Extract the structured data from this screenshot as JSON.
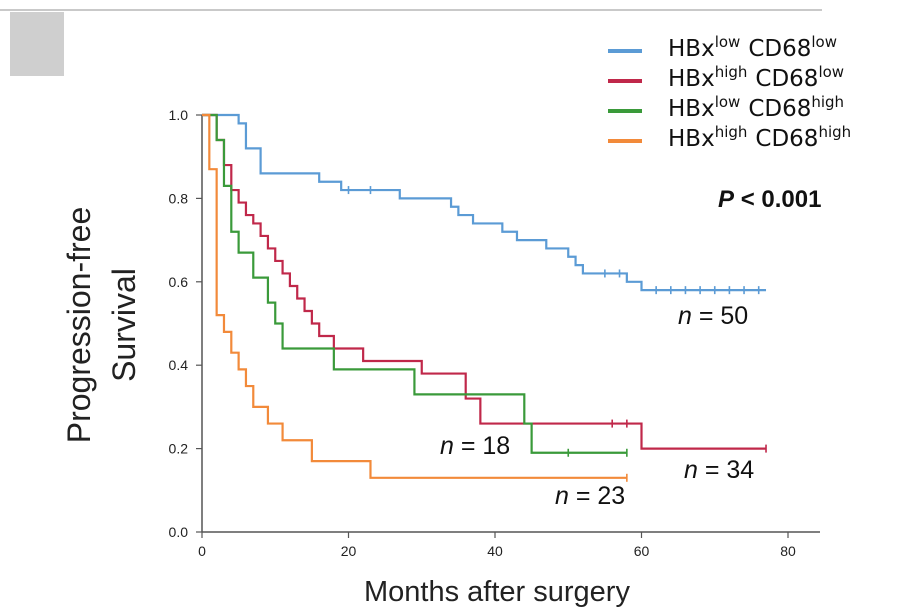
{
  "chart_data": {
    "type": "line",
    "style": "kaplan-meier step",
    "xlabel": "Months after surgery",
    "ylabel_line1": "Progression-free",
    "ylabel_line2": "Survival",
    "xlim": [
      0,
      80
    ],
    "ylim": [
      0,
      1.0
    ],
    "x_ticks": [
      0,
      20,
      40,
      60,
      80
    ],
    "y_ticks": [
      "0.0",
      "0.2",
      "0.4",
      "0.6",
      "0.8",
      "1.0"
    ],
    "y_tick_values": [
      0,
      0.2,
      0.4,
      0.6,
      0.8,
      1.0
    ],
    "legend_position": "top-right",
    "p_value_label": "P",
    "p_value_text": "< 0.001",
    "series": [
      {
        "name": "HBx low CD68 low",
        "hbx_sup": "low",
        "cd68_sup": "low",
        "color": "#5b9bd5",
        "n_prefix": "n",
        "n_text": "= 50",
        "steps": [
          [
            0,
            1.0
          ],
          [
            5,
            0.98
          ],
          [
            6,
            0.92
          ],
          [
            8,
            0.86
          ],
          [
            16,
            0.84
          ],
          [
            19,
            0.82
          ],
          [
            27,
            0.8
          ],
          [
            34,
            0.78
          ],
          [
            35,
            0.76
          ],
          [
            37,
            0.74
          ],
          [
            41,
            0.72
          ],
          [
            43,
            0.7
          ],
          [
            47,
            0.68
          ],
          [
            50,
            0.66
          ],
          [
            51,
            0.64
          ],
          [
            52,
            0.62
          ],
          [
            58,
            0.6
          ],
          [
            60,
            0.58
          ],
          [
            77,
            0.58
          ]
        ],
        "censored": [
          [
            20,
            0.82
          ],
          [
            23,
            0.82
          ],
          [
            62,
            0.58
          ],
          [
            64,
            0.58
          ],
          [
            66,
            0.58
          ],
          [
            68,
            0.58
          ],
          [
            70,
            0.58
          ],
          [
            72,
            0.58
          ],
          [
            74,
            0.58
          ],
          [
            76,
            0.58
          ],
          [
            55,
            0.62
          ],
          [
            57,
            0.62
          ]
        ]
      },
      {
        "name": "HBx high CD68 low",
        "hbx_sup": "high",
        "cd68_sup": "low",
        "color": "#c0284a",
        "n_prefix": "n",
        "n_text": "= 34",
        "steps": [
          [
            0,
            1.0
          ],
          [
            2,
            0.94
          ],
          [
            3,
            0.88
          ],
          [
            4,
            0.82
          ],
          [
            5,
            0.79
          ],
          [
            6,
            0.76
          ],
          [
            7,
            0.74
          ],
          [
            8,
            0.71
          ],
          [
            9,
            0.68
          ],
          [
            10,
            0.65
          ],
          [
            11,
            0.62
          ],
          [
            12,
            0.59
          ],
          [
            13,
            0.56
          ],
          [
            14,
            0.53
          ],
          [
            15,
            0.5
          ],
          [
            16,
            0.47
          ],
          [
            18,
            0.44
          ],
          [
            22,
            0.41
          ],
          [
            30,
            0.38
          ],
          [
            36,
            0.32
          ],
          [
            38,
            0.26
          ],
          [
            58,
            0.26
          ],
          [
            60,
            0.2
          ],
          [
            77,
            0.2
          ]
        ],
        "censored": [
          [
            56,
            0.26
          ],
          [
            58,
            0.26
          ],
          [
            77,
            0.2
          ]
        ]
      },
      {
        "name": "HBx low CD68 high",
        "hbx_sup": "low",
        "cd68_sup": "high",
        "color": "#3a9a3a",
        "n_prefix": "n",
        "n_text": "= 18",
        "steps": [
          [
            0,
            1.0
          ],
          [
            2,
            0.94
          ],
          [
            3,
            0.83
          ],
          [
            4,
            0.72
          ],
          [
            5,
            0.67
          ],
          [
            7,
            0.61
          ],
          [
            9,
            0.55
          ],
          [
            10,
            0.5
          ],
          [
            11,
            0.44
          ],
          [
            18,
            0.39
          ],
          [
            29,
            0.33
          ],
          [
            44,
            0.26
          ],
          [
            45,
            0.19
          ],
          [
            58,
            0.19
          ]
        ],
        "censored": [
          [
            50,
            0.19
          ],
          [
            58,
            0.19
          ]
        ]
      },
      {
        "name": "HBx high CD68 high",
        "hbx_sup": "high",
        "cd68_sup": "high",
        "color": "#f28a3a",
        "n_prefix": "n",
        "n_text": "= 23",
        "steps": [
          [
            0,
            1.0
          ],
          [
            1,
            0.87
          ],
          [
            2,
            0.52
          ],
          [
            3,
            0.48
          ],
          [
            4,
            0.43
          ],
          [
            5,
            0.39
          ],
          [
            6,
            0.35
          ],
          [
            7,
            0.3
          ],
          [
            9,
            0.26
          ],
          [
            11,
            0.22
          ],
          [
            15,
            0.17
          ],
          [
            18,
            0.17
          ],
          [
            23,
            0.13
          ],
          [
            58,
            0.13
          ]
        ],
        "censored": [
          [
            58,
            0.13
          ]
        ]
      }
    ]
  }
}
